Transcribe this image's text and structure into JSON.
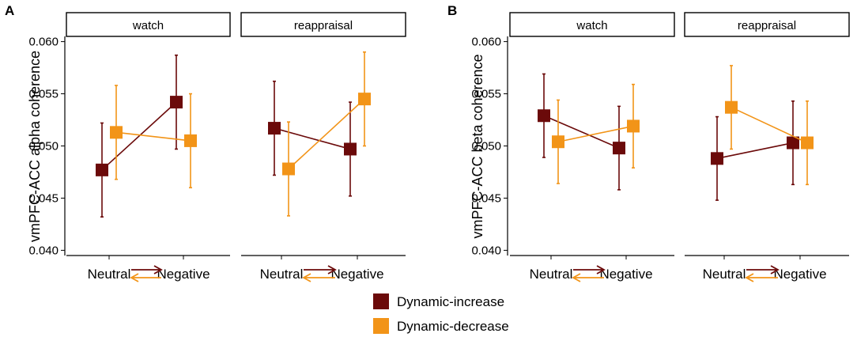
{
  "legend": {
    "items": [
      {
        "label": "Dynamic-increase",
        "color": "#6b0a0a"
      },
      {
        "label": "Dynamic-decrease",
        "color": "#f29418"
      }
    ]
  },
  "chart_data": [
    {
      "type": "line",
      "panel_label": "A",
      "ylabel": "vmPFC-ACC alpha coherence",
      "ylim": [
        0.0395,
        0.0605
      ],
      "yticks": [
        0.04,
        0.045,
        0.05,
        0.055,
        0.06
      ],
      "ytick_labels": [
        "0.040",
        "0.045",
        "0.050",
        "0.055",
        "0.060"
      ],
      "categories": [
        "Neutral",
        "Negative"
      ],
      "facets": [
        {
          "title": "watch",
          "series": [
            {
              "name": "Dynamic-increase",
              "values": [
                0.0477,
                0.0542
              ],
              "lower": [
                0.0432,
                0.0497
              ],
              "upper": [
                0.0522,
                0.0587
              ]
            },
            {
              "name": "Dynamic-decrease",
              "values": [
                0.0513,
                0.0505
              ],
              "lower": [
                0.0468,
                0.046
              ],
              "upper": [
                0.0558,
                0.055
              ]
            }
          ]
        },
        {
          "title": "reappraisal",
          "series": [
            {
              "name": "Dynamic-increase",
              "values": [
                0.0517,
                0.0497
              ],
              "lower": [
                0.0472,
                0.0452
              ],
              "upper": [
                0.0562,
                0.0542
              ]
            },
            {
              "name": "Dynamic-decrease",
              "values": [
                0.0478,
                0.0545
              ],
              "lower": [
                0.0433,
                0.05
              ],
              "upper": [
                0.0523,
                0.059
              ]
            }
          ]
        }
      ]
    },
    {
      "type": "line",
      "panel_label": "B",
      "ylabel": "vmPFC-ACC beta coherence",
      "ylim": [
        0.0395,
        0.0605
      ],
      "yticks": [
        0.04,
        0.045,
        0.05,
        0.055,
        0.06
      ],
      "ytick_labels": [
        "0.040",
        "0.045",
        "0.050",
        "0.055",
        "0.060"
      ],
      "categories": [
        "Neutral",
        "Negative"
      ],
      "facets": [
        {
          "title": "watch",
          "series": [
            {
              "name": "Dynamic-increase",
              "values": [
                0.0529,
                0.0498
              ],
              "lower": [
                0.0489,
                0.0458
              ],
              "upper": [
                0.0569,
                0.0538
              ]
            },
            {
              "name": "Dynamic-decrease",
              "values": [
                0.0504,
                0.0519
              ],
              "lower": [
                0.0464,
                0.0479
              ],
              "upper": [
                0.0544,
                0.0559
              ]
            }
          ]
        },
        {
          "title": "reappraisal",
          "series": [
            {
              "name": "Dynamic-increase",
              "values": [
                0.0488,
                0.0503
              ],
              "lower": [
                0.0448,
                0.0463
              ],
              "upper": [
                0.0528,
                0.0543
              ]
            },
            {
              "name": "Dynamic-decrease",
              "values": [
                0.0537,
                0.0503
              ],
              "lower": [
                0.0497,
                0.0463
              ],
              "upper": [
                0.0577,
                0.0543
              ]
            }
          ]
        }
      ]
    }
  ]
}
